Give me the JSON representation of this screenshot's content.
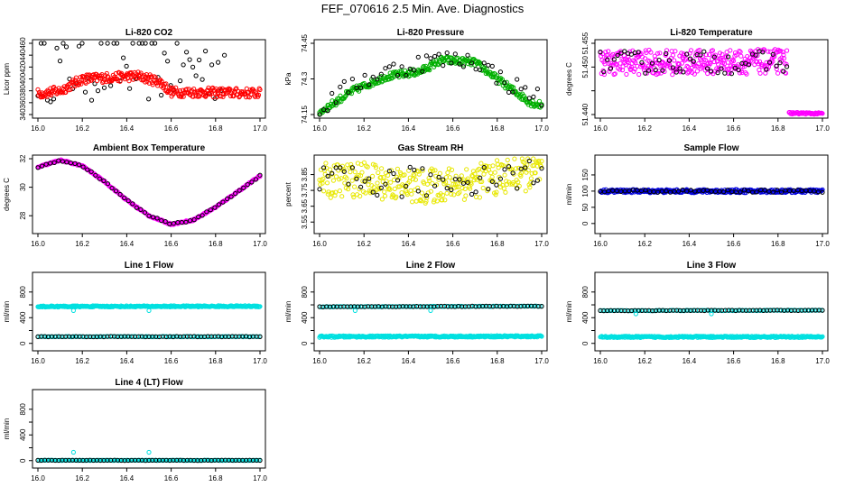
{
  "title": "FEF_070616  2.5 Min. Ave. Diagnostics",
  "x_ticks": [
    "16.0",
    "16.2",
    "16.4",
    "16.6",
    "16.8",
    "17.0"
  ],
  "chart_data": [
    {
      "type": "scatter",
      "title": "Li-820 CO2",
      "ylabel": "Licor ppm",
      "xlim": [
        16.0,
        17.0
      ],
      "ylim": [
        340,
        460
      ],
      "yticks": [
        340,
        360,
        380,
        400,
        420,
        440,
        460
      ],
      "series": [
        {
          "name": "black",
          "color": "#000000",
          "y_end": 0.84,
          "knots": [
            [
              16.0,
              420
            ],
            [
              16.5,
              420
            ],
            [
              17.0,
              420
            ]
          ],
          "jitter": 60,
          "n": 60
        },
        {
          "name": "red",
          "color": "#ff0000",
          "y_end": 1.0,
          "knots": [
            [
              16.0,
              375
            ],
            [
              16.1,
              380
            ],
            [
              16.2,
              400
            ],
            [
              16.45,
              405
            ],
            [
              16.55,
              395
            ],
            [
              16.6,
              378
            ],
            [
              17.0,
              376
            ]
          ],
          "jitter": 8,
          "n": 320
        }
      ]
    },
    {
      "type": "scatter",
      "title": "Li-820 Pressure",
      "ylabel": "kPa",
      "xlim": [
        16.0,
        17.0
      ],
      "ylim": [
        74.15,
        74.45
      ],
      "yticks": [
        74.15,
        74.3,
        74.45
      ],
      "series": [
        {
          "name": "green",
          "color": "#00b000",
          "y_end": 1.0,
          "knots": [
            [
              16.0,
              74.16
            ],
            [
              16.15,
              74.25
            ],
            [
              16.3,
              74.31
            ],
            [
              16.45,
              74.33
            ],
            [
              16.55,
              74.38
            ],
            [
              16.7,
              74.37
            ],
            [
              16.8,
              74.3
            ],
            [
              16.95,
              74.2
            ],
            [
              17.0,
              74.19
            ]
          ],
          "jitter": 0.015,
          "n": 300
        },
        {
          "name": "black",
          "color": "#000000",
          "y_end": 1.0,
          "knots": [
            [
              16.0,
              74.17
            ],
            [
              16.15,
              74.28
            ],
            [
              16.3,
              74.33
            ],
            [
              16.5,
              74.38
            ],
            [
              16.7,
              74.38
            ],
            [
              16.85,
              74.28
            ],
            [
              17.0,
              74.22
            ]
          ],
          "jitter": 0.04,
          "n": 55
        }
      ]
    },
    {
      "type": "scatter",
      "title": "Li-820 Temperature",
      "ylabel": "degrees C",
      "xlim": [
        16.0,
        17.0
      ],
      "ylim": [
        51.44,
        51.455
      ],
      "yticks": [
        51.44,
        51.445,
        51.45,
        51.455
      ],
      "ytick_labels": [
        "51.440",
        "",
        "51.450",
        "51.455"
      ],
      "series": [
        {
          "name": "magenta",
          "color": "#ff00ff",
          "y_end": 0.84,
          "knots": [
            [
              16.0,
              51.451
            ],
            [
              16.4,
              51.451
            ],
            [
              16.84,
              51.4512
            ]
          ],
          "jitter": 0.0026,
          "n": 330
        },
        {
          "name": "black",
          "color": "#000000",
          "y_end": 0.84,
          "knots": [
            [
              16.0,
              51.451
            ],
            [
              16.84,
              51.451
            ]
          ],
          "jitter": 0.0024,
          "n": 55
        },
        {
          "name": "magenta-low",
          "color": "#ff00ff",
          "y_start": 0.85,
          "y_end": 1.0,
          "knots": [
            [
              16.85,
              51.4403
            ],
            [
              17.0,
              51.4402
            ]
          ],
          "jitter": 0.0002,
          "n": 45
        }
      ]
    },
    {
      "type": "scatter",
      "title": "Ambient Box Temperature",
      "ylabel": "degrees C",
      "xlim": [
        16.0,
        17.0
      ],
      "ylim": [
        27.0,
        32.0
      ],
      "yticks": [
        28,
        30,
        32
      ],
      "series": [
        {
          "name": "magenta",
          "color": "#ff00ff",
          "y_end": 1.0,
          "knots": [
            [
              16.0,
              31.4
            ],
            [
              16.1,
              31.9
            ],
            [
              16.2,
              31.5
            ],
            [
              16.3,
              30.4
            ],
            [
              16.4,
              29.1
            ],
            [
              16.5,
              28.0
            ],
            [
              16.6,
              27.4
            ],
            [
              16.7,
              27.7
            ],
            [
              16.8,
              28.6
            ],
            [
              16.9,
              29.7
            ],
            [
              17.0,
              30.8
            ]
          ],
          "jitter": 0.05,
          "n": 260
        },
        {
          "name": "black",
          "color": "#000000",
          "y_end": 1.0,
          "knots": [
            [
              16.0,
              31.4
            ],
            [
              16.1,
              31.9
            ],
            [
              16.2,
              31.5
            ],
            [
              16.3,
              30.4
            ],
            [
              16.4,
              29.1
            ],
            [
              16.5,
              28.0
            ],
            [
              16.6,
              27.4
            ],
            [
              16.7,
              27.7
            ],
            [
              16.8,
              28.6
            ],
            [
              16.9,
              29.7
            ],
            [
              17.0,
              30.8
            ]
          ],
          "jitter": 0.05,
          "n": 55
        }
      ]
    },
    {
      "type": "scatter",
      "title": "Gas Stream RH",
      "ylabel": "percent",
      "xlim": [
        16.0,
        17.0
      ],
      "ylim": [
        3.5,
        3.95
      ],
      "yticks": [
        3.55,
        3.65,
        3.75,
        3.85
      ],
      "series": [
        {
          "name": "yellow",
          "color": "#e8e800",
          "y_end": 1.0,
          "knots": [
            [
              16.0,
              3.81
            ],
            [
              16.2,
              3.82
            ],
            [
              16.45,
              3.77
            ],
            [
              16.65,
              3.8
            ],
            [
              16.85,
              3.84
            ],
            [
              17.0,
              3.87
            ]
          ],
          "jitter": 0.11,
          "n": 320
        },
        {
          "name": "black",
          "color": "#000000",
          "y_end": 1.0,
          "knots": [
            [
              16.0,
              3.8
            ],
            [
              16.5,
              3.8
            ],
            [
              17.0,
              3.86
            ]
          ],
          "jitter": 0.1,
          "n": 55
        }
      ]
    },
    {
      "type": "scatter",
      "title": "Sample Flow",
      "ylabel": "ml/min",
      "xlim": [
        16.0,
        17.0
      ],
      "ylim": [
        -20,
        200
      ],
      "yticks": [
        0,
        50,
        100,
        150
      ],
      "series": [
        {
          "name": "blue",
          "color": "#0000dd",
          "y_end": 1.0,
          "knots": [
            [
              16.0,
              100
            ],
            [
              17.0,
              100
            ]
          ],
          "jitter": 5,
          "n": 320
        },
        {
          "name": "black",
          "color": "#000000",
          "y_end": 1.0,
          "knots": [
            [
              16.0,
              100
            ],
            [
              17.0,
              100
            ]
          ],
          "jitter": 4,
          "n": 55
        }
      ]
    },
    {
      "type": "scatter",
      "title": "Line 1 Flow",
      "ylabel": "ml/min",
      "xlim": [
        16.0,
        17.0
      ],
      "ylim": [
        -60,
        1050
      ],
      "yticks": [
        0,
        200,
        400,
        600,
        800
      ],
      "ytick_labels": [
        "0",
        "",
        "400",
        "",
        "800"
      ],
      "series": [
        {
          "name": "cyan-high",
          "color": "#00e0e0",
          "y_end": 1.0,
          "knots": [
            [
              16.0,
              575
            ],
            [
              17.0,
              578
            ]
          ],
          "jitter": 10,
          "n": 300
        },
        {
          "name": "cyan-low",
          "color": "#00e0e0",
          "y_end": 1.0,
          "knots": [
            [
              16.0,
              105
            ],
            [
              17.0,
              105
            ]
          ],
          "jitter": 4,
          "n": 120
        },
        {
          "name": "black",
          "color": "#000000",
          "y_end": 1.0,
          "knots": [
            [
              16.0,
              105
            ],
            [
              17.0,
              105
            ]
          ],
          "jitter": 4,
          "n": 65
        }
      ],
      "outliers": [
        [
          16.16,
          510
        ],
        [
          16.5,
          510
        ]
      ]
    },
    {
      "type": "scatter",
      "title": "Line 2 Flow",
      "ylabel": "ml/min",
      "xlim": [
        16.0,
        17.0
      ],
      "ylim": [
        -60,
        1050
      ],
      "yticks": [
        0,
        200,
        400,
        600,
        800
      ],
      "ytick_labels": [
        "0",
        "",
        "400",
        "",
        "800"
      ],
      "series": [
        {
          "name": "cyan-low",
          "color": "#00e0e0",
          "y_end": 1.0,
          "knots": [
            [
              16.0,
              105
            ],
            [
              17.0,
              110
            ]
          ],
          "jitter": 12,
          "n": 300
        },
        {
          "name": "cyan-high",
          "color": "#00e0e0",
          "y_end": 1.0,
          "knots": [
            [
              16.0,
              570
            ],
            [
              17.0,
              580
            ]
          ],
          "jitter": 4,
          "n": 120
        },
        {
          "name": "black",
          "color": "#000000",
          "y_end": 1.0,
          "knots": [
            [
              16.0,
              570
            ],
            [
              17.0,
              580
            ]
          ],
          "jitter": 4,
          "n": 65
        }
      ],
      "outliers": [
        [
          16.16,
          510
        ],
        [
          16.5,
          510
        ]
      ]
    },
    {
      "type": "scatter",
      "title": "Line 3 Flow",
      "ylabel": "ml/min",
      "xlim": [
        16.0,
        17.0
      ],
      "ylim": [
        -60,
        1050
      ],
      "yticks": [
        0,
        200,
        400,
        600,
        800
      ],
      "ytick_labels": [
        "0",
        "",
        "400",
        "",
        "800"
      ],
      "series": [
        {
          "name": "cyan-low",
          "color": "#00e0e0",
          "y_end": 1.0,
          "knots": [
            [
              16.0,
              100
            ],
            [
              17.0,
              102
            ]
          ],
          "jitter": 12,
          "n": 300
        },
        {
          "name": "cyan-high",
          "color": "#00e0e0",
          "y_end": 1.0,
          "knots": [
            [
              16.0,
              510
            ],
            [
              17.0,
              515
            ]
          ],
          "jitter": 4,
          "n": 120
        },
        {
          "name": "black",
          "color": "#000000",
          "y_end": 1.0,
          "knots": [
            [
              16.0,
              510
            ],
            [
              17.0,
              515
            ]
          ],
          "jitter": 4,
          "n": 65
        }
      ],
      "outliers": [
        [
          16.16,
          460
        ],
        [
          16.5,
          460
        ]
      ]
    },
    {
      "type": "scatter",
      "title": "Line 4 (LT) Flow",
      "ylabel": "ml/min",
      "xlim": [
        16.0,
        17.0
      ],
      "ylim": [
        -60,
        1050
      ],
      "yticks": [
        0,
        200,
        400,
        600,
        800
      ],
      "ytick_labels": [
        "0",
        "",
        "400",
        "",
        "800"
      ],
      "series": [
        {
          "name": "cyan",
          "color": "#00e0e0",
          "y_end": 1.0,
          "knots": [
            [
              16.0,
              5
            ],
            [
              17.0,
              5
            ]
          ],
          "jitter": 3,
          "n": 150
        },
        {
          "name": "black",
          "color": "#000000",
          "y_end": 1.0,
          "knots": [
            [
              16.0,
              5
            ],
            [
              17.0,
              5
            ]
          ],
          "jitter": 3,
          "n": 65
        }
      ],
      "outliers": [
        [
          16.16,
          130
        ],
        [
          16.5,
          130
        ]
      ]
    }
  ]
}
